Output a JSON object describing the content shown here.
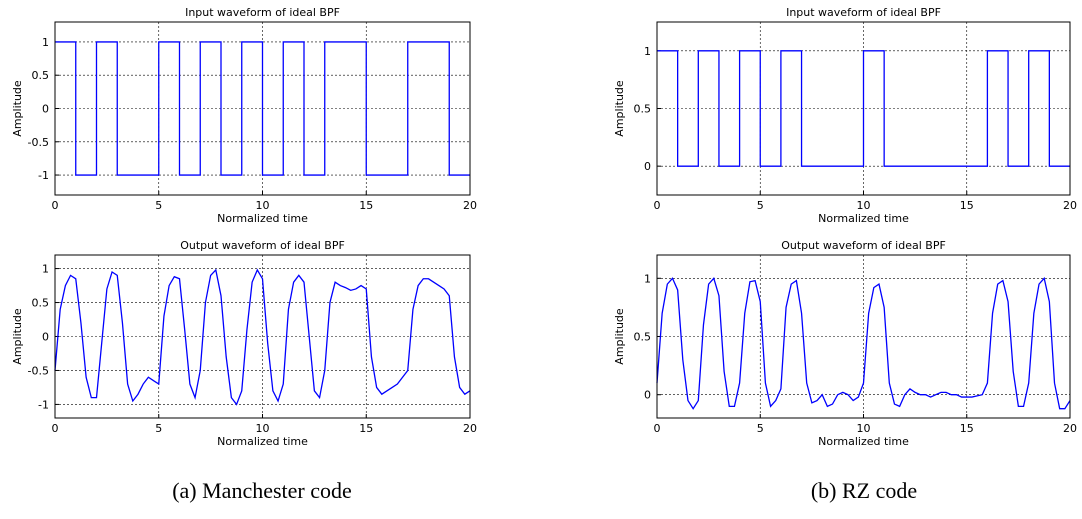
{
  "chart_data": [
    {
      "type": "line",
      "title": "Input waveform of ideal BPF",
      "xlabel": "Normalized time",
      "ylabel": "Amplitude",
      "color": "#0000ff",
      "grid": true,
      "xlim": [
        0,
        20
      ],
      "xticks": [
        0,
        5,
        10,
        15,
        20
      ],
      "ylim": [
        -1.3,
        1.3
      ],
      "yticks": [
        -1,
        -0.5,
        0,
        0.5,
        1
      ],
      "x": [
        0,
        1,
        1,
        2,
        2,
        3,
        3,
        5,
        5,
        6,
        6,
        7,
        7,
        8,
        8,
        9,
        9,
        10,
        10,
        11,
        11,
        12,
        12,
        13,
        13,
        15,
        15,
        17,
        17,
        19,
        19,
        20
      ],
      "values": [
        1,
        1,
        -1,
        -1,
        1,
        1,
        -1,
        -1,
        1,
        1,
        -1,
        -1,
        1,
        1,
        -1,
        -1,
        1,
        1,
        -1,
        -1,
        1,
        1,
        -1,
        -1,
        1,
        1,
        -1,
        -1,
        1,
        1,
        -1,
        -1
      ]
    },
    {
      "type": "line",
      "title": "Output waveform of ideal BPF",
      "xlabel": "Normalized time",
      "ylabel": "Amplitude",
      "color": "#0000ff",
      "grid": true,
      "xlim": [
        0,
        20
      ],
      "xticks": [
        0,
        5,
        10,
        15,
        20
      ],
      "ylim": [
        -1.2,
        1.2
      ],
      "yticks": [
        -1,
        -0.5,
        0,
        0.5,
        1
      ],
      "x": [
        0,
        0.25,
        0.5,
        0.75,
        1,
        1.25,
        1.5,
        1.75,
        2,
        2.25,
        2.5,
        2.75,
        3,
        3.25,
        3.5,
        3.75,
        4,
        4.25,
        4.5,
        4.75,
        5,
        5.25,
        5.5,
        5.75,
        6,
        6.25,
        6.5,
        6.75,
        7,
        7.25,
        7.5,
        7.75,
        8,
        8.25,
        8.5,
        8.75,
        9,
        9.25,
        9.5,
        9.75,
        10,
        10.25,
        10.5,
        10.75,
        11,
        11.25,
        11.5,
        11.75,
        12,
        12.25,
        12.5,
        12.75,
        13,
        13.25,
        13.5,
        13.75,
        14,
        14.25,
        14.5,
        14.75,
        15,
        15.25,
        15.5,
        15.75,
        16,
        16.25,
        16.5,
        16.75,
        17,
        17.25,
        17.5,
        17.75,
        18,
        18.25,
        18.5,
        18.75,
        19,
        19.25,
        19.5,
        19.75,
        20
      ],
      "values": [
        -0.5,
        0.4,
        0.75,
        0.9,
        0.85,
        0.2,
        -0.6,
        -0.9,
        -0.9,
        -0.1,
        0.7,
        0.95,
        0.9,
        0.2,
        -0.7,
        -0.95,
        -0.85,
        -0.7,
        -0.6,
        -0.65,
        -0.7,
        0.3,
        0.75,
        0.88,
        0.85,
        0.1,
        -0.7,
        -0.9,
        -0.5,
        0.5,
        0.9,
        0.98,
        0.6,
        -0.3,
        -0.9,
        -1.0,
        -0.8,
        0.1,
        0.8,
        0.98,
        0.85,
        -0.1,
        -0.8,
        -0.95,
        -0.7,
        0.4,
        0.8,
        0.9,
        0.8,
        0.0,
        -0.8,
        -0.9,
        -0.5,
        0.5,
        0.8,
        0.75,
        0.72,
        0.68,
        0.7,
        0.75,
        0.7,
        -0.3,
        -0.75,
        -0.85,
        -0.8,
        -0.75,
        -0.7,
        -0.6,
        -0.5,
        0.4,
        0.75,
        0.85,
        0.85,
        0.8,
        0.75,
        0.7,
        0.6,
        -0.3,
        -0.75,
        -0.85,
        -0.8
      ]
    },
    {
      "type": "line",
      "title": "Input waveform of ideal BPF",
      "xlabel": "Normalized time",
      "ylabel": "Amplitude",
      "color": "#0000ff",
      "grid": true,
      "xlim": [
        0,
        20
      ],
      "xticks": [
        0,
        5,
        10,
        15,
        20
      ],
      "ylim": [
        -0.25,
        1.25
      ],
      "yticks": [
        0,
        0.5,
        1
      ],
      "x": [
        0,
        1,
        1,
        2,
        2,
        3,
        3,
        4,
        4,
        5,
        5,
        6,
        6,
        7,
        7,
        10,
        10,
        11,
        11,
        16,
        16,
        17,
        17,
        18,
        18,
        19,
        19,
        20
      ],
      "values": [
        1,
        1,
        0,
        0,
        1,
        1,
        0,
        0,
        1,
        1,
        0,
        0,
        1,
        1,
        0,
        0,
        1,
        1,
        0,
        0,
        1,
        1,
        0,
        0,
        1,
        1,
        0,
        0
      ]
    },
    {
      "type": "line",
      "title": "Output waveform of ideal BPF",
      "xlabel": "Normalized time",
      "ylabel": "Amplitude",
      "color": "#0000ff",
      "grid": true,
      "xlim": [
        0,
        20
      ],
      "xticks": [
        0,
        5,
        10,
        15,
        20
      ],
      "ylim": [
        -0.2,
        1.2
      ],
      "yticks": [
        0,
        0.5,
        1
      ],
      "x": [
        0,
        0.25,
        0.5,
        0.75,
        1,
        1.25,
        1.5,
        1.75,
        2,
        2.25,
        2.5,
        2.75,
        3,
        3.25,
        3.5,
        3.75,
        4,
        4.25,
        4.5,
        4.75,
        5,
        5.25,
        5.5,
        5.75,
        6,
        6.25,
        6.5,
        6.75,
        7,
        7.25,
        7.5,
        7.75,
        8,
        8.25,
        8.5,
        8.75,
        9,
        9.25,
        9.5,
        9.75,
        10,
        10.25,
        10.5,
        10.75,
        11,
        11.25,
        11.5,
        11.75,
        12,
        12.25,
        12.5,
        12.75,
        13,
        13.25,
        13.5,
        13.75,
        14,
        14.25,
        14.5,
        14.75,
        15,
        15.25,
        15.5,
        15.75,
        16,
        16.25,
        16.5,
        16.75,
        17,
        17.25,
        17.5,
        17.75,
        18,
        18.25,
        18.5,
        18.75,
        19,
        19.25,
        19.5,
        19.75,
        20
      ],
      "values": [
        0.1,
        0.7,
        0.95,
        1.0,
        0.9,
        0.3,
        -0.05,
        -0.12,
        -0.05,
        0.6,
        0.95,
        1.0,
        0.85,
        0.2,
        -0.1,
        -0.1,
        0.1,
        0.7,
        0.97,
        0.98,
        0.8,
        0.1,
        -0.1,
        -0.05,
        0.05,
        0.75,
        0.95,
        0.98,
        0.7,
        0.1,
        -0.07,
        -0.05,
        0.0,
        -0.1,
        -0.08,
        0.0,
        0.02,
        0.0,
        -0.05,
        -0.02,
        0.1,
        0.7,
        0.92,
        0.95,
        0.75,
        0.1,
        -0.08,
        -0.1,
        0.0,
        0.05,
        0.02,
        0.0,
        0.0,
        -0.02,
        0.0,
        0.02,
        0.02,
        0.0,
        0.0,
        -0.02,
        -0.02,
        -0.02,
        -0.01,
        0.0,
        0.1,
        0.7,
        0.95,
        0.98,
        0.8,
        0.2,
        -0.1,
        -0.1,
        0.1,
        0.7,
        0.95,
        1.0,
        0.8,
        0.1,
        -0.12,
        -0.12,
        -0.05
      ]
    }
  ],
  "captions": [
    "(a) Manchester code",
    "(b) RZ code"
  ]
}
